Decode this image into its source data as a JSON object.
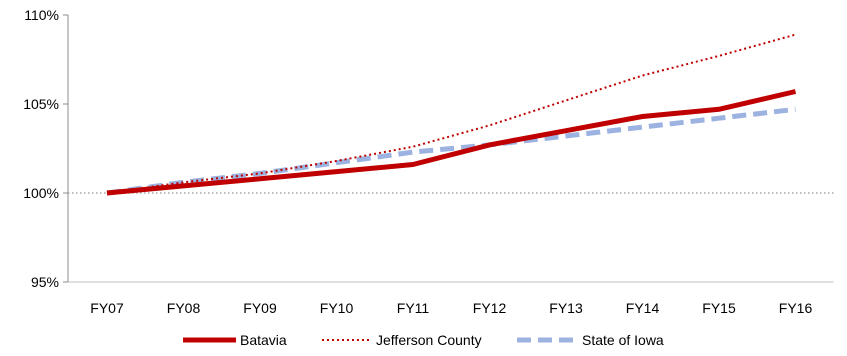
{
  "chart_data": {
    "type": "line",
    "categories": [
      "FY07",
      "FY08",
      "FY09",
      "FY10",
      "FY11",
      "FY12",
      "FY13",
      "FY14",
      "FY15",
      "FY16"
    ],
    "ylim": [
      95,
      110
    ],
    "yticks": [
      95,
      100,
      105,
      110
    ],
    "ytick_labels": [
      "95%",
      "100%",
      "105%",
      "110%"
    ],
    "reference_line": 100,
    "grid": false,
    "legend_position": "bottom",
    "series": [
      {
        "name": "Batavia",
        "values": [
          100,
          100.4,
          100.8,
          101.2,
          101.6,
          102.7,
          103.5,
          104.3,
          104.7,
          105.7
        ],
        "color": "#c00000",
        "style": "solid"
      },
      {
        "name": "Jefferson County",
        "values": [
          100,
          100.6,
          101.1,
          101.8,
          102.6,
          103.8,
          105.2,
          106.6,
          107.7,
          108.9
        ],
        "color": "#c00000",
        "style": "dotted"
      },
      {
        "name": "State of Iowa",
        "values": [
          100,
          100.6,
          101.1,
          101.7,
          102.3,
          102.7,
          103.2,
          103.7,
          104.2,
          104.7
        ],
        "color": "#9cb2e0",
        "style": "dashed"
      }
    ]
  }
}
